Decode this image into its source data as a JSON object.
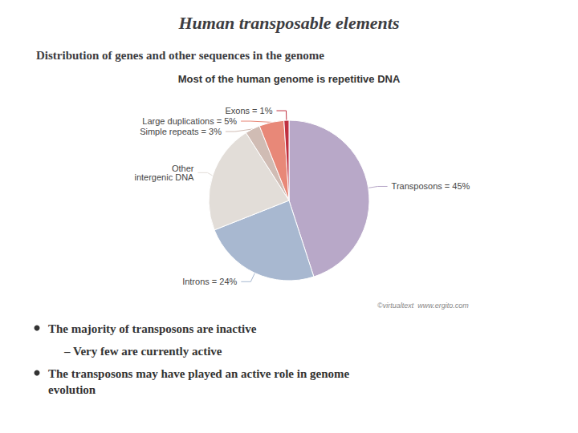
{
  "chart_data": {
    "type": "pie",
    "title": "Human transposable elements",
    "subtitle": "Distribution of genes and other sequences in the genome",
    "annotations": [
      "Most of the human genome is repetitive DNA",
      "©virtualtext  www.ergito.com",
      "The majority of transposons are inactive",
      "– Very few are currently active",
      "The transposons may have played an active role in genome\nevolution"
    ],
    "categories": [
      "Transposons = 45%",
      "Introns = 24%",
      "Other\nintergenic DNA",
      "Simple repeats = 3%",
      "Large duplications = 5%",
      "Exons = 1%"
    ],
    "values": [
      45,
      24,
      22,
      3,
      5,
      1
    ],
    "colors": [
      "#b8a8c8",
      "#a8b8d0",
      "#e2ddd8",
      "#d0bcb4",
      "#e88878",
      "#c03040"
    ]
  }
}
